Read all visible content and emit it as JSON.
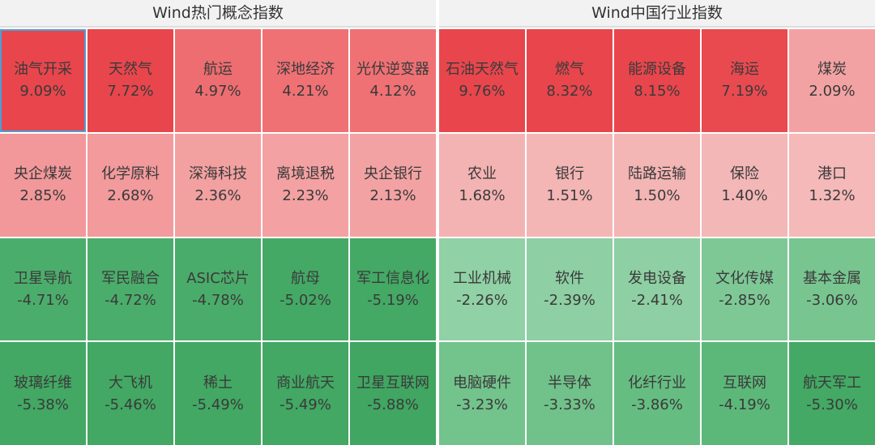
{
  "panels": [
    {
      "title": "Wind热门概念指数",
      "cells": [
        {
          "name": "油气开采",
          "value": "9.09%",
          "color": "#e8464c"
        },
        {
          "name": "天然气",
          "value": "7.72%",
          "color": "#e8464c"
        },
        {
          "name": "航运",
          "value": "4.97%",
          "color": "#ee6d70"
        },
        {
          "name": "深地经济",
          "value": "4.21%",
          "color": "#ef7174"
        },
        {
          "name": "光伏逆变器",
          "value": "4.12%",
          "color": "#ef7174"
        },
        {
          "name": "央企煤炭",
          "value": "2.85%",
          "color": "#f2989a"
        },
        {
          "name": "化学原料",
          "value": "2.68%",
          "color": "#f29a9c"
        },
        {
          "name": "深海科技",
          "value": "2.36%",
          "color": "#f3a0a1"
        },
        {
          "name": "离境退税",
          "value": "2.23%",
          "color": "#f3a1a2"
        },
        {
          "name": "央企银行",
          "value": "2.13%",
          "color": "#f3a2a3"
        },
        {
          "name": "卫星导航",
          "value": "-4.71%",
          "color": "#4bad6b"
        },
        {
          "name": "军民融合",
          "value": "-4.72%",
          "color": "#4bad6b"
        },
        {
          "name": "ASIC芯片",
          "value": "-4.78%",
          "color": "#4aac6a"
        },
        {
          "name": "航母",
          "value": "-5.02%",
          "color": "#44a965"
        },
        {
          "name": "军工信息化",
          "value": "-5.19%",
          "color": "#43a964"
        },
        {
          "name": "玻璃纤维",
          "value": "-5.38%",
          "color": "#42a863"
        },
        {
          "name": "大飞机",
          "value": "-5.46%",
          "color": "#42a863"
        },
        {
          "name": "稀土",
          "value": "-5.49%",
          "color": "#42a863"
        },
        {
          "name": "商业航天",
          "value": "-5.49%",
          "color": "#42a863"
        },
        {
          "name": "卫星互联网",
          "value": "-5.88%",
          "color": "#40a661"
        }
      ]
    },
    {
      "title": "Wind中国行业指数",
      "cells": [
        {
          "name": "石油天然气",
          "value": "9.76%",
          "color": "#e8464c"
        },
        {
          "name": "燃气",
          "value": "8.32%",
          "color": "#e8464c"
        },
        {
          "name": "能源设备",
          "value": "8.15%",
          "color": "#e8464c"
        },
        {
          "name": "海运",
          "value": "7.19%",
          "color": "#e94a50"
        },
        {
          "name": "煤炭",
          "value": "2.09%",
          "color": "#f3a2a3"
        },
        {
          "name": "农业",
          "value": "1.68%",
          "color": "#f4b3b3"
        },
        {
          "name": "银行",
          "value": "1.51%",
          "color": "#f4b5b5"
        },
        {
          "name": "陆路运输",
          "value": "1.50%",
          "color": "#f4b5b5"
        },
        {
          "name": "保险",
          "value": "1.40%",
          "color": "#f4b7b7"
        },
        {
          "name": "港口",
          "value": "1.32%",
          "color": "#f5b9b9"
        },
        {
          "name": "工业机械",
          "value": "-2.26%",
          "color": "#90d1a5"
        },
        {
          "name": "软件",
          "value": "-2.39%",
          "color": "#8ecfa3"
        },
        {
          "name": "发电设备",
          "value": "-2.41%",
          "color": "#8ecfa3"
        },
        {
          "name": "文化传媒",
          "value": "-2.85%",
          "color": "#7ec896"
        },
        {
          "name": "基本金属",
          "value": "-3.06%",
          "color": "#78c590"
        },
        {
          "name": "电脑硬件",
          "value": "-3.23%",
          "color": "#73c38c"
        },
        {
          "name": "半导体",
          "value": "-3.33%",
          "color": "#71c28a"
        },
        {
          "name": "化纤行业",
          "value": "-3.86%",
          "color": "#66bd82"
        },
        {
          "name": "互联网",
          "value": "-4.19%",
          "color": "#5cb879"
        },
        {
          "name": "航天军工",
          "value": "-5.30%",
          "color": "#43a964"
        }
      ]
    }
  ]
}
